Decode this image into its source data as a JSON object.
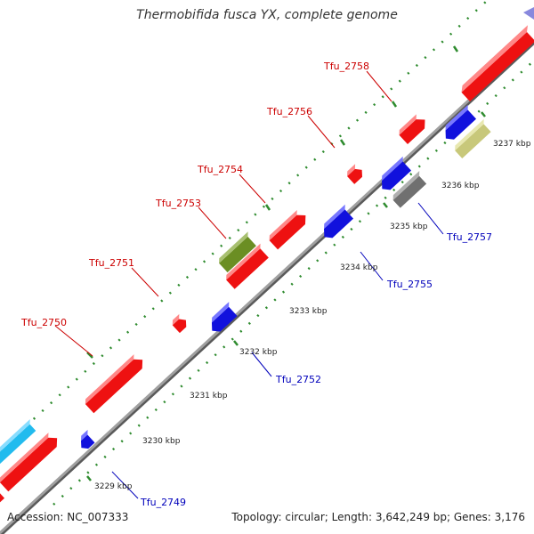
{
  "title": "Thermobifida fusca YX, complete genome",
  "footer": {
    "accession_label": "Accession:",
    "accession": "NC_007333",
    "topology_text": "Topology: circular; Length: 3,642,249 bp; Genes: 3,176"
  },
  "colors": {
    "background": "#ffffff",
    "backbone": "#8a8a8a",
    "tick": "#2e8b2e",
    "forward_label": "#cc0000",
    "reverse_label": "#0000bb",
    "red_feature": "#ee1111",
    "blue_feature": "#1111dd",
    "olive_feature": "#6b8e23",
    "gray_feature": "#707070",
    "khaki_feature": "#c8c87a",
    "cyan_feature": "#22bbee"
  },
  "scale_ticks": [
    "3229 kbp",
    "3230 kbp",
    "3231 kbp",
    "3232 kbp",
    "3233 kbp",
    "3234 kbp",
    "3235 kbp",
    "3236 kbp",
    "3237 kbp"
  ],
  "forward_labels": [
    "Tfu_2750",
    "Tfu_2751",
    "Tfu_2753",
    "Tfu_2754",
    "Tfu_2756",
    "Tfu_2758"
  ],
  "reverse_labels": [
    "Tfu_2749",
    "Tfu_2752",
    "Tfu_2755",
    "Tfu_2757"
  ]
}
